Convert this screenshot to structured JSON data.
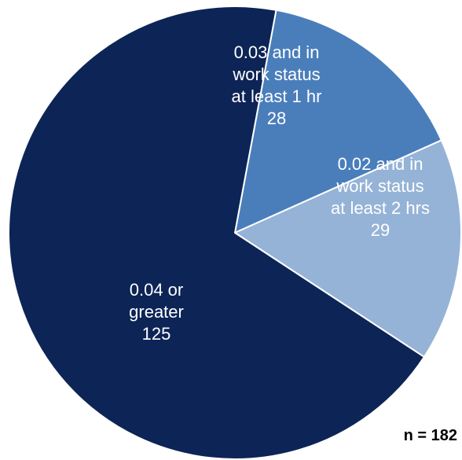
{
  "chart_data": {
    "type": "pie",
    "slices": [
      {
        "label_lines": [
          "0.03 and in",
          "work status",
          "at least 1 hr"
        ],
        "value": 28,
        "value_text": "28",
        "color": "#4a7ebb"
      },
      {
        "label_lines": [
          "0.02 and in",
          "work status",
          "at least 2 hrs"
        ],
        "value": 29,
        "value_text": "29",
        "color": "#95b3d7"
      },
      {
        "label_lines": [
          "0.04 or",
          "greater"
        ],
        "value": 125,
        "value_text": "125",
        "color": "#0d2456"
      }
    ],
    "total_label": "n = 182",
    "start_angle_deg": 10.5
  }
}
